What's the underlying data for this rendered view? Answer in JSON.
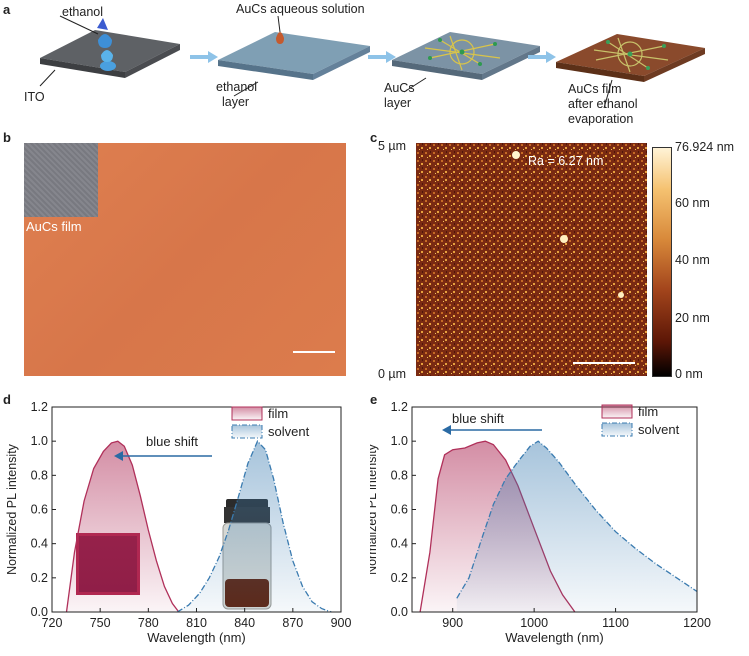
{
  "panel_a": {
    "label": "a",
    "steps": [
      {
        "labels": [
          "ethanol",
          "ITO"
        ]
      },
      {
        "labels": [
          "AuCs aqueous solution",
          "ethanol",
          "layer"
        ]
      },
      {
        "labels": [
          "AuCs",
          "layer"
        ]
      },
      {
        "labels": [
          "AuCs film",
          "after ethanol",
          "evaporation"
        ]
      }
    ],
    "colors": {
      "ito": "#6f7276",
      "ethanol_layer": "#7f9fb4",
      "film": "#8a4a2c",
      "arrow": "#8ec3e8"
    }
  },
  "panel_b": {
    "label": "b",
    "inset_label": "AuCs film",
    "colors": {
      "film": "#d97a4b",
      "inset": "#7e7f86"
    }
  },
  "panel_c": {
    "label": "c",
    "y_top": "5 µm",
    "y_bottom": "0 µm",
    "annotation": "Ra = 6.27 nm",
    "colorbar_ticks": [
      "76.924 nm",
      "60 nm",
      "40 nm",
      "20 nm",
      "0 nm"
    ],
    "colorbar_values": [
      76.924,
      60,
      40,
      20,
      0
    ]
  },
  "chart_data": [
    {
      "panel": "d",
      "type": "area",
      "xlabel": "Wavelength (nm)",
      "ylabel": "Normalized PL intensity",
      "xlim": [
        720,
        900
      ],
      "ylim": [
        0,
        1.2
      ],
      "xticks": [
        "720",
        "750",
        "780",
        "810",
        "840",
        "870",
        "900"
      ],
      "yticks": [
        "0.0",
        "0.2",
        "0.4",
        "0.6",
        "0.8",
        "1.0",
        "1.2"
      ],
      "annotation": "blue shift",
      "legend": [
        "film",
        "solvent"
      ],
      "legend_position": "top-right",
      "series": [
        {
          "name": "film",
          "color": "#b0305a",
          "x": [
            729,
            734,
            740,
            746,
            752,
            757,
            761,
            765,
            770,
            775,
            780,
            785,
            790,
            795,
            799
          ],
          "y": [
            0.0,
            0.35,
            0.65,
            0.84,
            0.94,
            0.99,
            1.0,
            0.97,
            0.86,
            0.68,
            0.48,
            0.3,
            0.15,
            0.05,
            0.0
          ]
        },
        {
          "name": "solvent",
          "color": "#3a7bb0",
          "x": [
            798,
            805,
            812,
            818,
            824,
            830,
            836,
            842,
            848,
            853,
            858,
            864,
            870,
            876,
            882,
            888,
            894
          ],
          "y": [
            0.0,
            0.04,
            0.11,
            0.2,
            0.32,
            0.48,
            0.67,
            0.87,
            1.0,
            0.95,
            0.78,
            0.52,
            0.3,
            0.15,
            0.06,
            0.02,
            0.0
          ]
        }
      ]
    },
    {
      "panel": "e",
      "type": "area",
      "xlabel": "Wavelength (nm)",
      "ylabel": "Normalized PL intensity",
      "xlim": [
        850,
        1200
      ],
      "ylim": [
        0,
        1.2
      ],
      "xticks": [
        "900",
        "1000",
        "1100",
        "1200"
      ],
      "yticks": [
        "0.0",
        "0.2",
        "0.4",
        "0.6",
        "0.8",
        "1.0",
        "1.2"
      ],
      "annotation": "blue shift",
      "legend": [
        "film",
        "solvent"
      ],
      "legend_position": "top-right",
      "series": [
        {
          "name": "film",
          "color": "#b0305a",
          "x": [
            860,
            872,
            882,
            890,
            900,
            915,
            930,
            940,
            950,
            965,
            980,
            1000,
            1020,
            1035,
            1050
          ],
          "y": [
            0.0,
            0.35,
            0.78,
            0.92,
            0.95,
            0.96,
            0.99,
            1.0,
            0.98,
            0.89,
            0.74,
            0.49,
            0.24,
            0.1,
            0.0
          ]
        },
        {
          "name": "solvent",
          "color": "#3a7bb0",
          "x": [
            905,
            920,
            935,
            950,
            965,
            980,
            995,
            1005,
            1015,
            1030,
            1050,
            1075,
            1100,
            1125,
            1150,
            1175,
            1200
          ],
          "y": [
            0.08,
            0.2,
            0.42,
            0.63,
            0.78,
            0.88,
            0.97,
            1.0,
            0.96,
            0.88,
            0.75,
            0.6,
            0.47,
            0.37,
            0.28,
            0.2,
            0.12
          ]
        }
      ]
    }
  ]
}
